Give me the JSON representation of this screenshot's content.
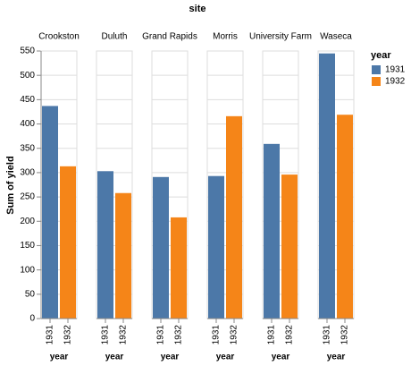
{
  "chart_data": {
    "type": "bar",
    "title": "site",
    "facets": [
      "Crookston",
      "Duluth",
      "Grand Rapids",
      "Morris",
      "University Farm",
      "Waseca"
    ],
    "series": [
      {
        "name": "1931",
        "color": "#4c78a8",
        "values": [
          437,
          303,
          291,
          293,
          359,
          545
        ]
      },
      {
        "name": "1932",
        "color": "#f58518",
        "values": [
          313,
          258,
          208,
          416,
          296,
          419
        ]
      }
    ],
    "y_title": "Sum of yield",
    "x_title": "year",
    "legend_title": "year",
    "ylim": [
      0,
      550
    ],
    "yticks": [
      0,
      50,
      100,
      150,
      200,
      250,
      300,
      350,
      400,
      450,
      500,
      550
    ],
    "grid": true
  }
}
